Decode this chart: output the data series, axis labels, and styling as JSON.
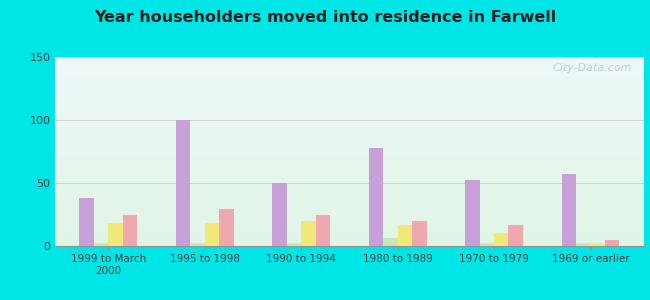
{
  "title": "Year householders moved into residence in Farwell",
  "categories": [
    "1999 to March\n2000",
    "1995 to 1998",
    "1990 to 1994",
    "1980 to 1989",
    "1970 to 1979",
    "1969 or earlier"
  ],
  "series": {
    "White Non-Hispanic": [
      38,
      100,
      50,
      78,
      52,
      57
    ],
    "Black": [
      2,
      2,
      2,
      6,
      2,
      2
    ],
    "Other Race": [
      18,
      18,
      20,
      17,
      10,
      2
    ],
    "Hispanic or Latino": [
      25,
      29,
      25,
      20,
      17,
      5
    ]
  },
  "colors": {
    "White Non-Hispanic": "#c8a0d8",
    "Black": "#c8e8b8",
    "Other Race": "#f0e878",
    "Hispanic or Latino": "#f0a8b0"
  },
  "ylim": [
    0,
    150
  ],
  "yticks": [
    0,
    50,
    100,
    150
  ],
  "outer_bg": "#00e5e5",
  "watermark": "City-Data.com"
}
